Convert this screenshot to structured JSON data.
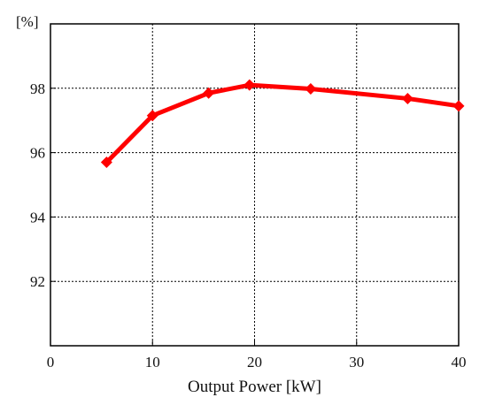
{
  "chart_data": {
    "type": "line",
    "title": "",
    "xlabel": "Output Power [kW]",
    "ylabel": "[%]",
    "xlim": [
      0,
      40
    ],
    "ylim": [
      90,
      100
    ],
    "xticks": [
      0,
      10,
      20,
      30,
      40
    ],
    "yticks": [
      92,
      94,
      96,
      98
    ],
    "grid": true,
    "legend": "none",
    "series": [
      {
        "color": "#ff0000",
        "marker": "diamond",
        "x": [
          5.5,
          10,
          15.5,
          19.5,
          25.5,
          35,
          40
        ],
        "y": [
          95.7,
          97.15,
          97.85,
          98.1,
          97.98,
          97.68,
          97.45
        ]
      }
    ]
  }
}
